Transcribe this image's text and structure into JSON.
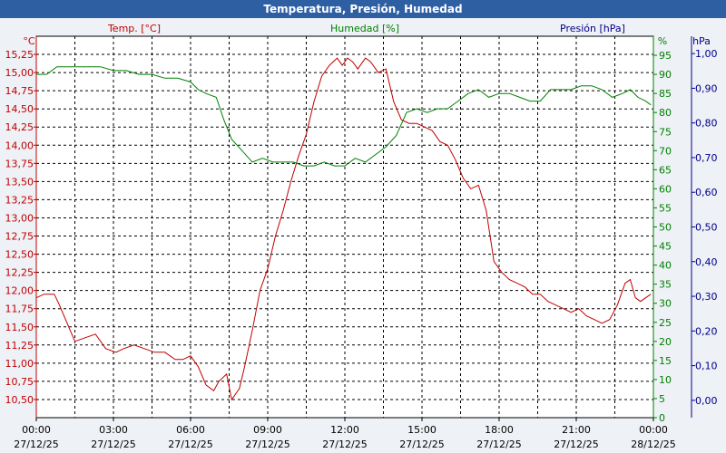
{
  "window": {
    "title": "Temperatura, Presión, Humedad"
  },
  "colors": {
    "temp": "#c00000",
    "hum": "#008000",
    "pres": "#00008b",
    "grid": "#000000",
    "plot_bg": "#ffffff"
  },
  "chart_data": {
    "type": "line",
    "title": "Temperatura, Presión, Humedad",
    "grid": true,
    "x_labels": [
      {
        "time": "00:00",
        "date": "27/12/25"
      },
      {
        "time": "03:00",
        "date": "27/12/25"
      },
      {
        "time": "06:00",
        "date": "27/12/25"
      },
      {
        "time": "09:00",
        "date": "27/12/25"
      },
      {
        "time": "12:00",
        "date": "27/12/25"
      },
      {
        "time": "15:00",
        "date": "27/12/25"
      },
      {
        "time": "18:00",
        "date": "27/12/25"
      },
      {
        "time": "21:00",
        "date": "27/12/25"
      },
      {
        "time": "00:00",
        "date": "28/12/25"
      }
    ],
    "x_range_hours": [
      0,
      24
    ],
    "axes": {
      "temp": {
        "label": "Temp. [°C]",
        "unit": "°C",
        "range": [
          10.25,
          15.5
        ],
        "ticks": [
          "10,50",
          "10,75",
          "11,00",
          "11,25",
          "11,50",
          "11,75",
          "12,00",
          "12,25",
          "12,50",
          "12,75",
          "13,00",
          "13,25",
          "13,50",
          "13,75",
          "14,00",
          "14,25",
          "14,50",
          "14,75",
          "15,00",
          "15,25"
        ]
      },
      "hum": {
        "label": "Humedad [%]",
        "unit": "%",
        "range": [
          0,
          100
        ],
        "ticks": [
          "0",
          "5",
          "10",
          "15",
          "20",
          "25",
          "30",
          "35",
          "40",
          "45",
          "50",
          "55",
          "60",
          "65",
          "70",
          "75",
          "80",
          "85",
          "90",
          "95"
        ]
      },
      "pres": {
        "label": "Presión [hPa]",
        "unit": "hPa",
        "range": [
          -0.05,
          1.05
        ],
        "ticks": [
          "0,00",
          "0,10",
          "0,20",
          "0,30",
          "0,40",
          "0,50",
          "0,60",
          "0,70",
          "0,80",
          "0,90",
          "1,00"
        ]
      }
    },
    "series": [
      {
        "name": "Temp. [°C]",
        "axis": "temp",
        "x": [
          0.0,
          0.3,
          0.7,
          0.9,
          1.2,
          1.5,
          1.9,
          2.3,
          2.7,
          3.1,
          3.4,
          3.8,
          4.2,
          4.6,
          5.0,
          5.4,
          5.7,
          6.0,
          6.3,
          6.6,
          6.9,
          7.1,
          7.4,
          7.6,
          7.9,
          8.1,
          8.4,
          8.7,
          9.0,
          9.3,
          9.6,
          9.9,
          10.2,
          10.5,
          10.8,
          11.1,
          11.4,
          11.7,
          11.9,
          12.1,
          12.3,
          12.5,
          12.8,
          13.0,
          13.3,
          13.6,
          13.9,
          14.2,
          14.5,
          14.8,
          15.1,
          15.4,
          15.7,
          16.0,
          16.3,
          16.6,
          16.9,
          17.2,
          17.5,
          17.8,
          18.1,
          18.4,
          18.7,
          19.0,
          19.3,
          19.6,
          19.9,
          20.2,
          20.5,
          20.8,
          21.1,
          21.4,
          21.7,
          22.0,
          22.3,
          22.6,
          22.9,
          23.1,
          23.3,
          23.5,
          23.7,
          23.9
        ],
        "y": [
          11.9,
          11.95,
          11.95,
          11.8,
          11.55,
          11.3,
          11.35,
          11.4,
          11.2,
          11.15,
          11.2,
          11.25,
          11.2,
          11.15,
          11.15,
          11.05,
          11.05,
          11.1,
          10.95,
          10.7,
          10.62,
          10.75,
          10.85,
          10.5,
          10.65,
          10.95,
          11.45,
          12.0,
          12.3,
          12.75,
          13.1,
          13.5,
          13.85,
          14.15,
          14.6,
          14.95,
          15.1,
          15.2,
          15.1,
          15.2,
          15.15,
          15.05,
          15.2,
          15.15,
          15.0,
          15.05,
          14.6,
          14.35,
          14.3,
          14.3,
          14.25,
          14.2,
          14.05,
          14.0,
          13.8,
          13.55,
          13.4,
          13.45,
          13.1,
          12.4,
          12.25,
          12.15,
          12.1,
          12.05,
          11.95,
          11.95,
          11.85,
          11.8,
          11.75,
          11.7,
          11.75,
          11.65,
          11.6,
          11.55,
          11.6,
          11.8,
          12.1,
          12.15,
          11.9,
          11.85,
          11.9,
          11.95
        ]
      },
      {
        "name": "Humedad [%]",
        "axis": "hum",
        "x": [
          0.0,
          0.4,
          0.8,
          1.2,
          1.6,
          2.0,
          2.5,
          3.0,
          3.5,
          4.0,
          4.5,
          5.0,
          5.5,
          6.0,
          6.3,
          6.6,
          7.0,
          7.3,
          7.6,
          8.0,
          8.4,
          8.8,
          9.2,
          9.6,
          10.0,
          10.4,
          10.8,
          11.2,
          11.6,
          12.0,
          12.4,
          12.8,
          13.2,
          13.6,
          14.0,
          14.4,
          14.8,
          15.2,
          15.6,
          16.0,
          16.4,
          16.8,
          17.2,
          17.6,
          18.0,
          18.4,
          18.8,
          19.2,
          19.6,
          20.0,
          20.4,
          20.8,
          21.2,
          21.6,
          22.0,
          22.4,
          22.8,
          23.1,
          23.4,
          23.7,
          23.9
        ],
        "y": [
          90,
          90,
          92,
          92,
          92,
          92,
          92,
          91,
          91,
          90,
          90,
          89,
          89,
          88,
          86,
          85,
          84,
          78,
          73,
          70,
          67,
          68,
          67,
          67,
          67,
          66,
          66,
          67,
          66,
          66,
          68,
          67,
          69,
          71,
          74,
          80,
          81,
          80,
          81,
          81,
          83,
          85,
          86,
          84,
          85,
          85,
          84,
          83,
          83,
          86,
          86,
          86,
          87,
          87,
          86,
          84,
          85,
          86,
          84,
          83,
          82
        ]
      }
    ]
  }
}
